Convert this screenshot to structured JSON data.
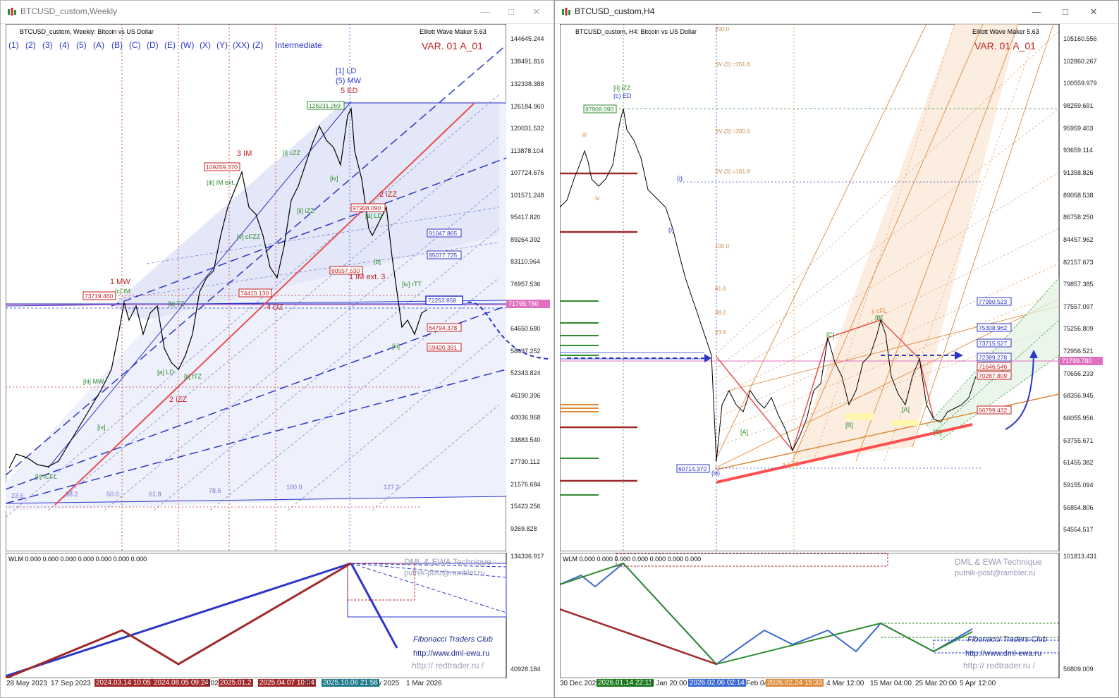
{
  "left": {
    "window_title": "BTCUSD_custom,Weekly",
    "chart_header": "BTCUSD_custom, Weekly:  Bitcoin vs US Dollar",
    "indicator_name": "Elliott Wave Maker 5.63",
    "variant": "VAR. 01 A_01",
    "degree_buttons": [
      "(1)",
      "(2)",
      "(3)",
      "(4)",
      "(5)",
      "(A)",
      "(B)",
      "(C)",
      "(D)",
      "(E)",
      "(W)",
      "(X)",
      "(Y)",
      "(XX)",
      "(Z)"
    ],
    "degree_label": "Intermediate",
    "price_axis": [
      "144645.244",
      "138491.816",
      "132338.388",
      "126184.960",
      "120031.532",
      "113878.104",
      "107724.676",
      "101571.248",
      "95417.820",
      "89264.392",
      "83110.964",
      "76957.536",
      "70804.108",
      "64650.680",
      "58497.252",
      "52343.824",
      "46190.396",
      "40036.968",
      "33883.540",
      "27730.112",
      "21576.684",
      "15423.256",
      "9269.828"
    ],
    "current_price": "71799.780",
    "price_tags_red": [
      "109259.370",
      "97908.090",
      "80557.530",
      "74410.130",
      "73719.460",
      "64794.378",
      "59420.391"
    ],
    "price_tags_blue": [
      "91047.865",
      "85077.725",
      "72253.858"
    ],
    "price_tag_green": "126231.269",
    "wave_labels": [
      "[1] LD",
      "(5) MW",
      "5 ED",
      "3 IM",
      "[i] cZZ",
      "[iii] IM ext.",
      "[iv]",
      "[ii] iZZ",
      "1 MW",
      "[c] IM",
      "4 DZ",
      "[v] cFZZ",
      "[iv] rTT",
      "[iii]",
      "[ii] tTZ",
      "[a] LD",
      "[b] TZ",
      "2 iZZ",
      "[iii] MW",
      "[ii] tCFL",
      "[iv]",
      "2 iZZ",
      "[a] LD",
      "[b]",
      "1 IM ext. 3",
      "[iv] rTT",
      "[iii]"
    ],
    "fib_levels": [
      "23.6",
      "38.2",
      "50.0",
      "61.8",
      "78.6",
      "100.0",
      "127.2"
    ],
    "wlm_text": "WLM 0.000 0.000 0.000 0.000 0.000 0.000 0.000",
    "ind_axis_top": "134336.917",
    "ind_axis_bottom": "40928.184",
    "watermark_title": "DML & EWA Technique",
    "watermark_email": "putnik-post@rambler.ru",
    "club": "Fibonacci     Traders     Club",
    "url1": "http://www.dml-ewa.ru",
    "url2": "http://  redtrader.ru  /",
    "x_axis": {
      "labels": [
        "28 May 2023",
        "17 Sep 2023",
        "202",
        "25",
        "v 2025",
        "1 Mar 2026"
      ],
      "tags": [
        "2024.03.14 10:05",
        "2024.08.05 09:24",
        "2025.01.2",
        "2025.04.07 10:04",
        "2025.10.06 21:58"
      ]
    }
  },
  "right": {
    "window_title": "BTCUSD_custom,H4",
    "chart_header": "BTCUSD_custom, H4:  Bitcoin vs US Dollar",
    "indicator_name": "Elliott Wave Maker 5.63",
    "variant": "VAR. 01 A_01",
    "price_axis": [
      "105160.556",
      "102860.267",
      "100559.979",
      "98259.691",
      "95959.403",
      "93659.114",
      "91358.826",
      "89058.538",
      "86758.250",
      "84457.962",
      "82157.673",
      "79857.385",
      "77557.097",
      "75256.809",
      "72956.521",
      "70656.233",
      "68356.945",
      "66055.956",
      "63755.671",
      "61455.382",
      "59155.094",
      "56854.806",
      "54554.517"
    ],
    "current_price": "71799.780",
    "price_tags_blue": [
      "77990.523",
      "75308.962",
      "73715.527",
      "72389.278"
    ],
    "price_tags_red": [
      "71646.546",
      "70287.809",
      "66799.432"
    ],
    "price_tag_green": "97908.090",
    "price_tag_low": "60714.370",
    "wave_labels": [
      "[ii] iZZ",
      "(c) ED",
      "iii",
      "iv",
      "(i)",
      "(i)",
      "(iii)",
      "y cFL",
      "[A]",
      "[B]",
      "[C]",
      "x cZZ",
      "[A]",
      "[B]",
      "[C]"
    ],
    "fib_fan": [
      "200.0",
      "161.8",
      "100.0",
      "61.8",
      "38.2",
      "23.6"
    ],
    "fib_fan_v": [
      "SV (3) =261.8",
      "SV (3) =200.0",
      "SV (3) =161.8"
    ],
    "wlm_text": "WLM 0.000 0.000 0.000 0.000 0.000 0.000 0.000",
    "ind_axis_top": "101813.431",
    "ind_axis_bottom": "56809.009",
    "watermark_title": "DML & EWA Technique",
    "watermark_email": "putnik-post@rambler.ru",
    "club": "Fibonacci     Traders     Club",
    "url1": "http://www.dml-ewa.ru",
    "url2": "http://  redtrader.ru  /",
    "x_axis": {
      "labels": [
        "30 Dec 2025",
        "0 Jan 20:00",
        "Feb 04",
        "4 Mar 12:00",
        "15 Mar 04:00",
        "25 Mar 20:00",
        "5 Apr 12:00"
      ],
      "tags": [
        "2026.01.14 22:11",
        "2026.02.06 02:14",
        "2026.02.24 15:33"
      ]
    }
  },
  "colors": {
    "red": "#d43a3a",
    "blue": "#2a37c8",
    "green": "#2e8b2e",
    "orange": "#e08a3a",
    "pink": "#e070c0",
    "dark_red": "#a02828"
  },
  "chart_data": [
    {
      "type": "line",
      "title": "BTCUSD_custom, Weekly:  Bitcoin vs US Dollar",
      "xlabel": "",
      "ylabel": "",
      "x": [
        "28 May 2023",
        "17 Sep 2023",
        "2024.03.14",
        "2024.08.05",
        "2025.01.2",
        "2025.04.07",
        "2025.10.06",
        "1 Mar 2026"
      ],
      "series": [
        {
          "values": [
            27500,
            26500,
            71000,
            54000,
            109000,
            76000,
            126000,
            65000
          ]
        }
      ],
      "ylim": [
        9269.828,
        144645.244
      ],
      "current_price": 71799.78
    },
    {
      "type": "line",
      "title": "BTCUSD_custom, H4:  Bitcoin vs US Dollar",
      "xlabel": "",
      "ylabel": "",
      "x": [
        "30 Dec 2025",
        "2026.01.14",
        "0 Jan 20:00",
        "2026.02.06",
        "Feb 04",
        "2026.02.24",
        "4 Mar 12:00",
        "15 Mar 04:00",
        "25 Mar 20:00",
        "5 Apr 12:00"
      ],
      "series": [
        {
          "values": [
            87500,
            97900,
            89000,
            60714,
            66000,
            63300,
            74000,
            76000,
            65500,
            69800
          ]
        }
      ],
      "ylim": [
        54554.517,
        105160.556
      ],
      "current_price": 71799.78
    }
  ]
}
